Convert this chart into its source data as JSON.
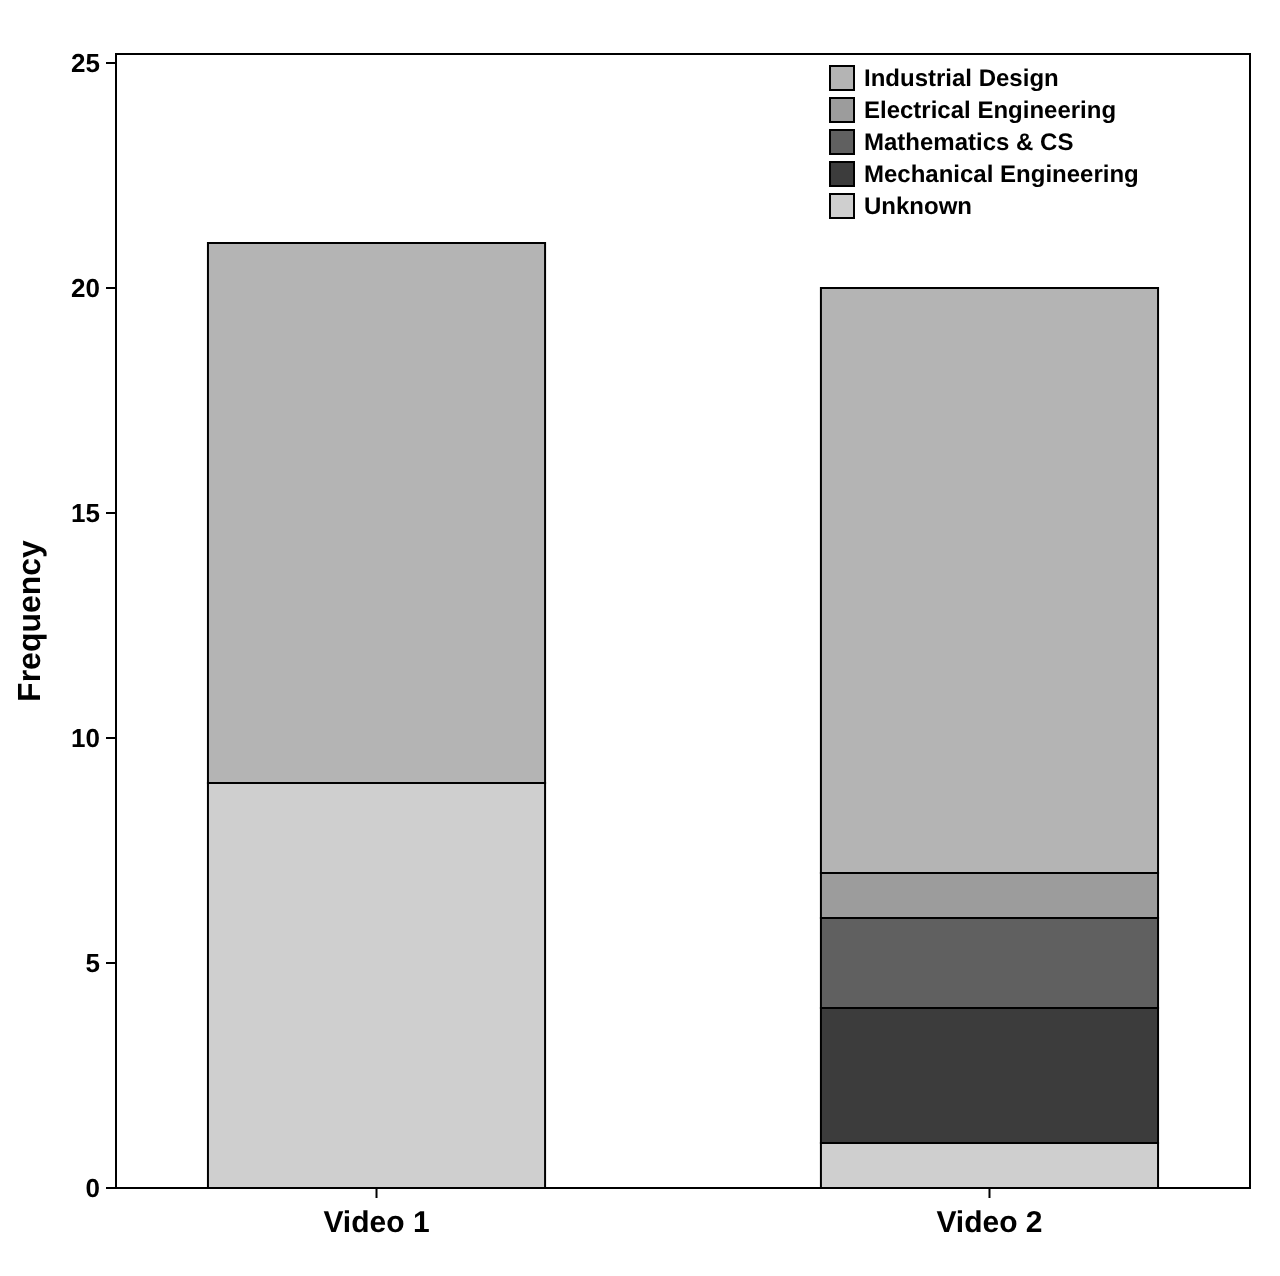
{
  "chart_data": {
    "type": "bar",
    "stacked": true,
    "ylabel": "Frequency",
    "categories": [
      "Video 1",
      "Video 2"
    ],
    "ylim": [
      0,
      25.2
    ],
    "yticks": [
      0,
      5,
      10,
      15,
      20,
      25
    ],
    "grid": false,
    "legend": "top right",
    "series": [
      {
        "name": "Unknown",
        "color": "#cfcfcf",
        "values": [
          9,
          1
        ]
      },
      {
        "name": "Mechanical Engineering",
        "color": "#3c3c3c",
        "values": [
          0,
          3
        ]
      },
      {
        "name": "Mathematics & CS",
        "color": "#606060",
        "values": [
          0,
          2
        ]
      },
      {
        "name": "Electrical Engineering",
        "color": "#9c9c9c",
        "values": [
          0,
          1
        ]
      },
      {
        "name": "Industrial Design",
        "color": "#b4b4b4",
        "values": [
          12,
          13
        ]
      }
    ]
  }
}
